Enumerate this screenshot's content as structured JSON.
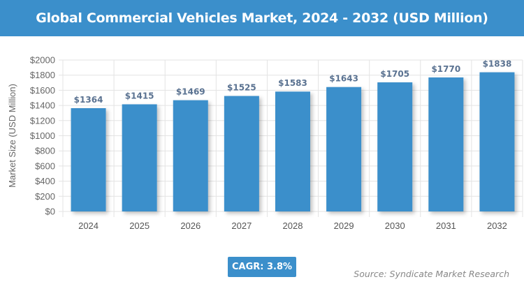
{
  "chart_data": {
    "type": "bar",
    "title": "Global Commercial Vehicles Market, 2024 - 2032 (USD Million)",
    "categories": [
      "2024",
      "2025",
      "2026",
      "2027",
      "2028",
      "2029",
      "2030",
      "2031",
      "2032"
    ],
    "values": [
      1364,
      1415,
      1469,
      1525,
      1583,
      1643,
      1705,
      1770,
      1838
    ],
    "data_labels": [
      "$1364",
      "$1415",
      "$1469",
      "$1525",
      "$1583",
      "$1643",
      "$1705",
      "$1770",
      "$1838"
    ],
    "xlabel": "",
    "ylabel": "Market Size (USD Million)",
    "ylim": [
      0,
      2000
    ],
    "yticks": [
      "$0",
      "$200",
      "$400",
      "$600",
      "$800",
      "$1000",
      "$1200",
      "$1400",
      "$1600",
      "$1800",
      "$2000"
    ],
    "grid": true,
    "bar_color": "#3b8fcb",
    "label_color": "#5a7291"
  },
  "cagr": "CAGR: 3.8%",
  "source": "Source: Syndicate Market Research"
}
